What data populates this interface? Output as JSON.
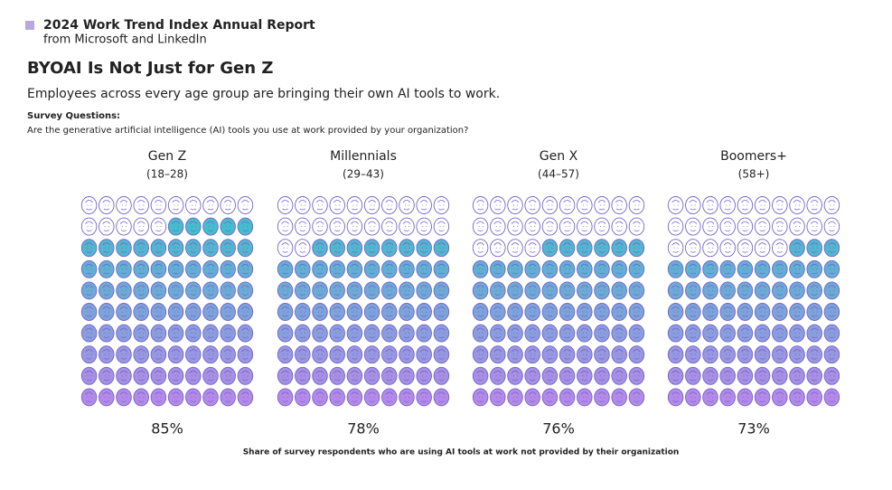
{
  "header": {
    "title": "2024 Work Trend Index Annual Report",
    "subtitle": "from Microsoft and LinkedIn"
  },
  "chart_data": {
    "type": "waffle",
    "title": "BYOAI Is Not Just for Gen Z",
    "subtitle": "Employees across every age group are bringing their own AI tools to work.",
    "question_label": "Survey Questions:",
    "question": "Are the generative artificial intelligence (AI) tools you use at work provided by your organization?",
    "categories": [
      "Gen Z",
      "Millennials",
      "Gen X",
      "Boomers+"
    ],
    "subcategories": [
      "(18–28)",
      "(29–43)",
      "(44–57)",
      "(58+)"
    ],
    "values": [
      85,
      78,
      76,
      73
    ],
    "value_labels": [
      "85%",
      "78%",
      "76%",
      "73%"
    ],
    "caption": "Share of survey respondents who are using AI tools at work not provided by their organization",
    "colors": [
      "#36c3c8",
      "#b48ae8"
    ],
    "outline_color": "#7566cc"
  }
}
